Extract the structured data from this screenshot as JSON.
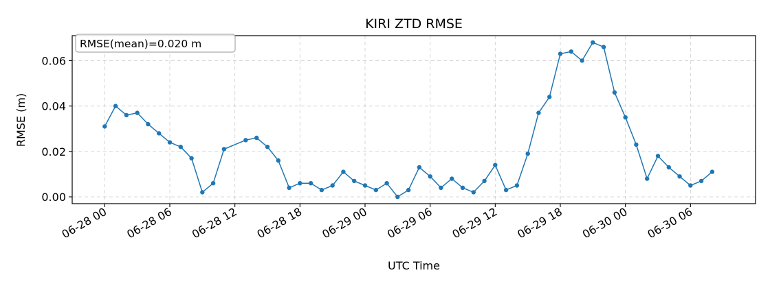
{
  "chart_data": {
    "type": "line",
    "title": "KIRI ZTD RMSE",
    "xlabel": "UTC Time",
    "ylabel": "RMSE (m)",
    "annotation": "RMSE(mean)=0.020 m",
    "x_tick_labels": [
      "06-28 00",
      "06-28 06",
      "06-28 12",
      "06-28 18",
      "06-29 00",
      "06-29 06",
      "06-29 12",
      "06-29 18",
      "06-30 00",
      "06-30 06"
    ],
    "y_tick_labels": [
      "0.00",
      "0.02",
      "0.04",
      "0.06"
    ],
    "y_ticks": [
      0,
      0.02,
      0.04,
      0.06
    ],
    "ylim": [
      -0.003,
      0.071
    ],
    "xlim": [
      "06-27 21:00",
      "06-30 12:00"
    ],
    "grid": true,
    "series": [
      {
        "color": "#1f77b4",
        "x": [
          "06-28 00:00",
          "06-28 01:00",
          "06-28 02:00",
          "06-28 03:00",
          "06-28 04:00",
          "06-28 05:00",
          "06-28 06:00",
          "06-28 07:00",
          "06-28 08:00",
          "06-28 09:00",
          "06-28 10:00",
          "06-28 11:00",
          "06-28 13:00",
          "06-28 14:00",
          "06-28 15:00",
          "06-28 16:00",
          "06-28 17:00",
          "06-28 18:00",
          "06-28 19:00",
          "06-28 20:00",
          "06-28 21:00",
          "06-28 22:00",
          "06-28 23:00",
          "06-29 00:00",
          "06-29 01:00",
          "06-29 02:00",
          "06-29 03:00",
          "06-29 04:00",
          "06-29 05:00",
          "06-29 06:00",
          "06-29 07:00",
          "06-29 08:00",
          "06-29 09:00",
          "06-29 10:00",
          "06-29 11:00",
          "06-29 12:00",
          "06-29 13:00",
          "06-29 14:00",
          "06-29 15:00",
          "06-29 16:00",
          "06-29 17:00",
          "06-29 18:00",
          "06-29 19:00",
          "06-29 20:00",
          "06-29 21:00",
          "06-29 22:00",
          "06-29 23:00",
          "06-30 00:00",
          "06-30 01:00",
          "06-30 02:00",
          "06-30 03:00",
          "06-30 04:00",
          "06-30 05:00",
          "06-30 06:00",
          "06-30 07:00",
          "06-30 08:00"
        ],
        "y": [
          0.031,
          0.04,
          0.036,
          0.037,
          0.032,
          0.028,
          0.024,
          0.022,
          0.017,
          0.002,
          0.006,
          0.021,
          0.025,
          0.026,
          0.022,
          0.016,
          0.004,
          0.006,
          0.006,
          0.003,
          0.005,
          0.011,
          0.007,
          0.005,
          0.003,
          0.006,
          0.0,
          0.003,
          0.013,
          0.009,
          0.004,
          0.008,
          0.004,
          0.002,
          0.007,
          0.014,
          0.003,
          0.005,
          0.019,
          0.037,
          0.044,
          0.063,
          0.064,
          0.06,
          0.068,
          0.066,
          0.046,
          0.035,
          0.023,
          0.008,
          0.018,
          0.013,
          0.009,
          0.005,
          0.007,
          0.011
        ]
      }
    ]
  }
}
